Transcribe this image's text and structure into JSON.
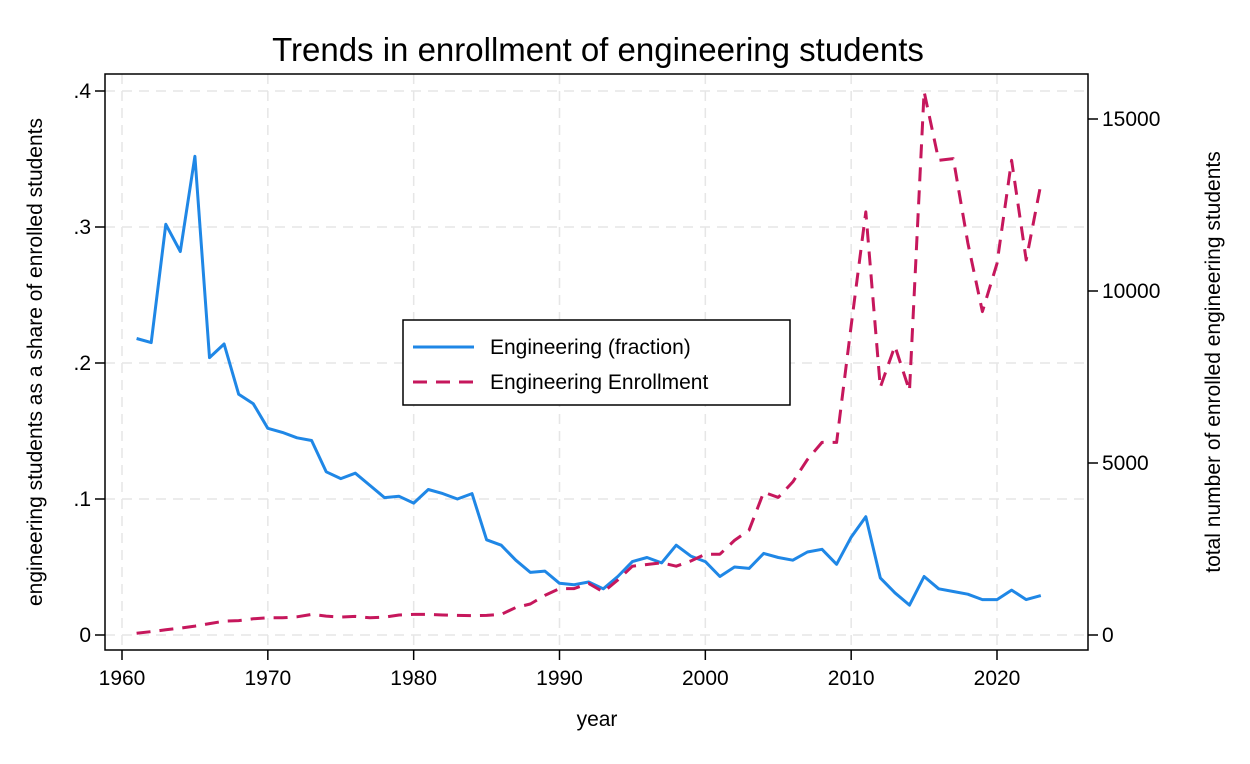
{
  "chart_data": {
    "type": "line",
    "title": "Trends in enrollment of engineering students",
    "xlabel": "year",
    "ylabel": "engineering students as a share of enrolled students",
    "y2label": "total number of enrolled engineering students",
    "xlim": [
      1960,
      2025
    ],
    "ylim": [
      0,
      0.4
    ],
    "y2lim": [
      0,
      15500
    ],
    "xticks": [
      {
        "value": 1960,
        "label": "1960"
      },
      {
        "value": 1970,
        "label": "1970"
      },
      {
        "value": 1980,
        "label": "1980"
      },
      {
        "value": 1990,
        "label": "1990"
      },
      {
        "value": 2000,
        "label": "2000"
      },
      {
        "value": 2010,
        "label": "2010"
      },
      {
        "value": 2020,
        "label": "2020"
      }
    ],
    "yticks": [
      {
        "value": 0,
        "label": "0"
      },
      {
        "value": 0.1,
        "label": ".1"
      },
      {
        "value": 0.2,
        "label": ".2"
      },
      {
        "value": 0.3,
        "label": ".3"
      },
      {
        "value": 0.4,
        "label": ".4"
      }
    ],
    "y2ticks": [
      {
        "value": 0,
        "label": "0"
      },
      {
        "value": 5000,
        "label": "5000"
      },
      {
        "value": 10000,
        "label": "10000"
      },
      {
        "value": 15000,
        "label": "15000"
      }
    ],
    "grid": true,
    "legend_position": "center",
    "series": [
      {
        "name": "Engineering (fraction)",
        "axis": "left",
        "color": "#1f87e6",
        "dash": "solid",
        "x": [
          1961,
          1962,
          1963,
          1964,
          1965,
          1966,
          1967,
          1968,
          1969,
          1970,
          1971,
          1972,
          1973,
          1974,
          1975,
          1976,
          1977,
          1978,
          1979,
          1980,
          1981,
          1982,
          1983,
          1984,
          1985,
          1986,
          1987,
          1988,
          1989,
          1990,
          1991,
          1992,
          1993,
          1994,
          1995,
          1996,
          1997,
          1998,
          1999,
          2000,
          2001,
          2002,
          2003,
          2004,
          2005,
          2006,
          2007,
          2008,
          2009,
          2010,
          2011,
          2012,
          2013,
          2014,
          2015,
          2016,
          2017,
          2018,
          2019,
          2020,
          2021,
          2022,
          2023
        ],
        "y": [
          0.218,
          0.215,
          0.302,
          0.282,
          0.352,
          0.204,
          0.214,
          0.177,
          0.17,
          0.152,
          0.149,
          0.145,
          0.143,
          0.12,
          0.115,
          0.119,
          0.11,
          0.101,
          0.102,
          0.097,
          0.107,
          0.104,
          0.1,
          0.104,
          0.07,
          0.066,
          0.055,
          0.046,
          0.047,
          0.038,
          0.037,
          0.039,
          0.034,
          0.043,
          0.054,
          0.057,
          0.053,
          0.066,
          0.058,
          0.054,
          0.043,
          0.05,
          0.049,
          0.06,
          0.057,
          0.055,
          0.061,
          0.063,
          0.052,
          0.072,
          0.087,
          0.042,
          0.031,
          0.022,
          0.043,
          0.034,
          0.032,
          0.03,
          0.026,
          0.026,
          0.033,
          0.026,
          0.029
        ]
      },
      {
        "name": "Engineering Enrollment",
        "axis": "right",
        "color": "#c6175c",
        "dash": "dashed",
        "x": [
          1961,
          1962,
          1963,
          1964,
          1965,
          1966,
          1967,
          1968,
          1969,
          1970,
          1971,
          1972,
          1973,
          1974,
          1975,
          1976,
          1977,
          1978,
          1979,
          1980,
          1981,
          1982,
          1983,
          1984,
          1985,
          1986,
          1987,
          1988,
          1989,
          1990,
          1991,
          1992,
          1993,
          1994,
          1995,
          1996,
          1997,
          1998,
          1999,
          2000,
          2001,
          2002,
          2003,
          2004,
          2005,
          2006,
          2007,
          2008,
          2009,
          2010,
          2011,
          2012,
          2013,
          2014,
          2015,
          2016,
          2017,
          2018,
          2019,
          2020,
          2021,
          2022,
          2023
        ],
        "y": [
          50,
          100,
          150,
          200,
          260,
          330,
          400,
          420,
          470,
          500,
          500,
          530,
          600,
          550,
          520,
          540,
          500,
          520,
          580,
          600,
          600,
          580,
          570,
          560,
          570,
          600,
          800,
          900,
          1150,
          1350,
          1350,
          1500,
          1250,
          1600,
          2000,
          2050,
          2100,
          2000,
          2150,
          2350,
          2350,
          2750,
          3050,
          4150,
          4000,
          4450,
          5100,
          5600,
          5600,
          9000,
          12300,
          7200,
          8400,
          7100,
          15800,
          13800,
          13850,
          11400,
          9400,
          10800,
          13800,
          10900,
          13100
        ]
      }
    ]
  }
}
